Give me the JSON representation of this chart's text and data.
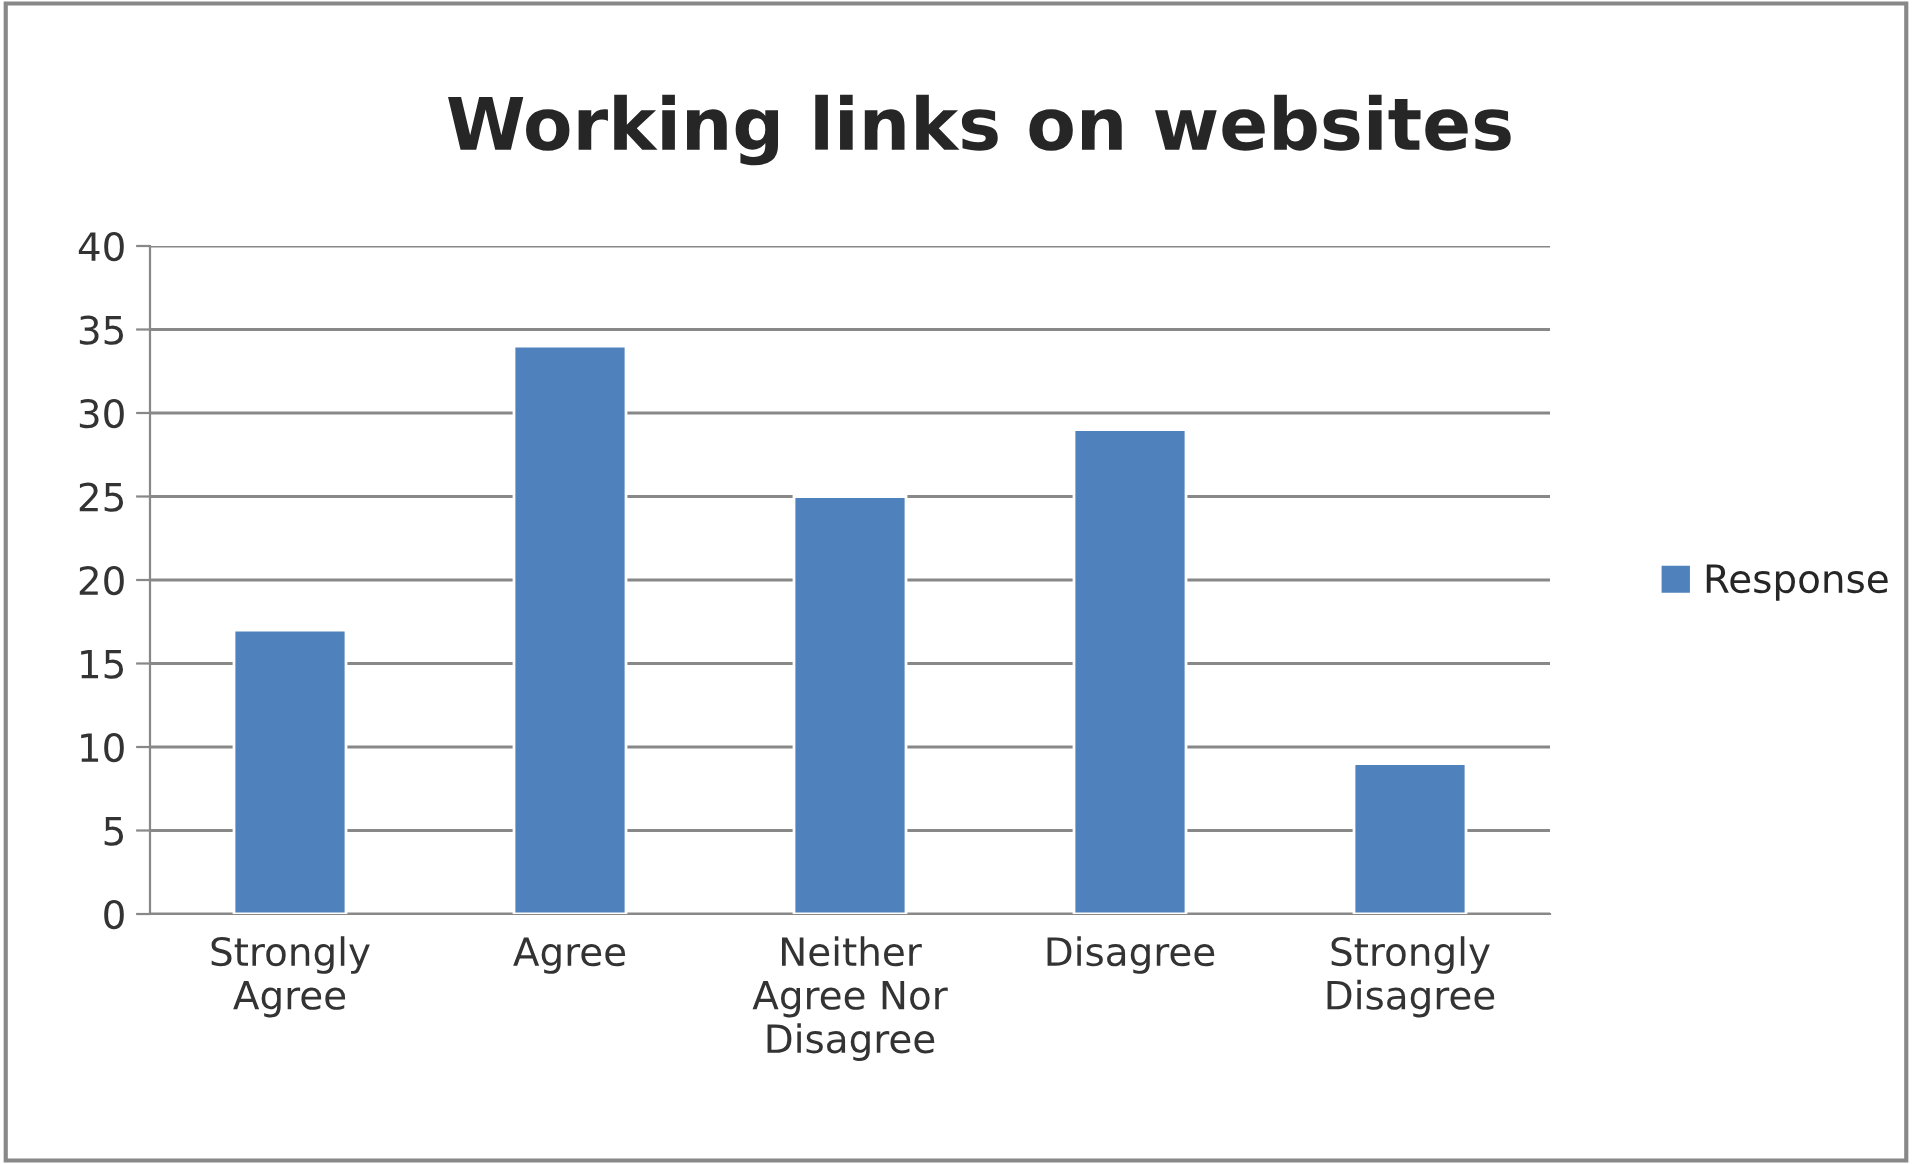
{
  "chart_data": {
    "type": "bar",
    "title": "Working links on websites",
    "categories": [
      "Strongly\nAgree",
      "Agree",
      "Neither\nAgree Nor\nDisagree",
      "Disagree",
      "Strongly\nDisagree"
    ],
    "series": [
      {
        "name": "Response",
        "color": "#4f81bd",
        "values": [
          17,
          34,
          25,
          29,
          9
        ]
      }
    ],
    "ylim": [
      0,
      40
    ],
    "yticks": [
      0,
      5,
      10,
      15,
      20,
      25,
      30,
      35,
      40
    ],
    "grid": "y",
    "legend": "right"
  }
}
